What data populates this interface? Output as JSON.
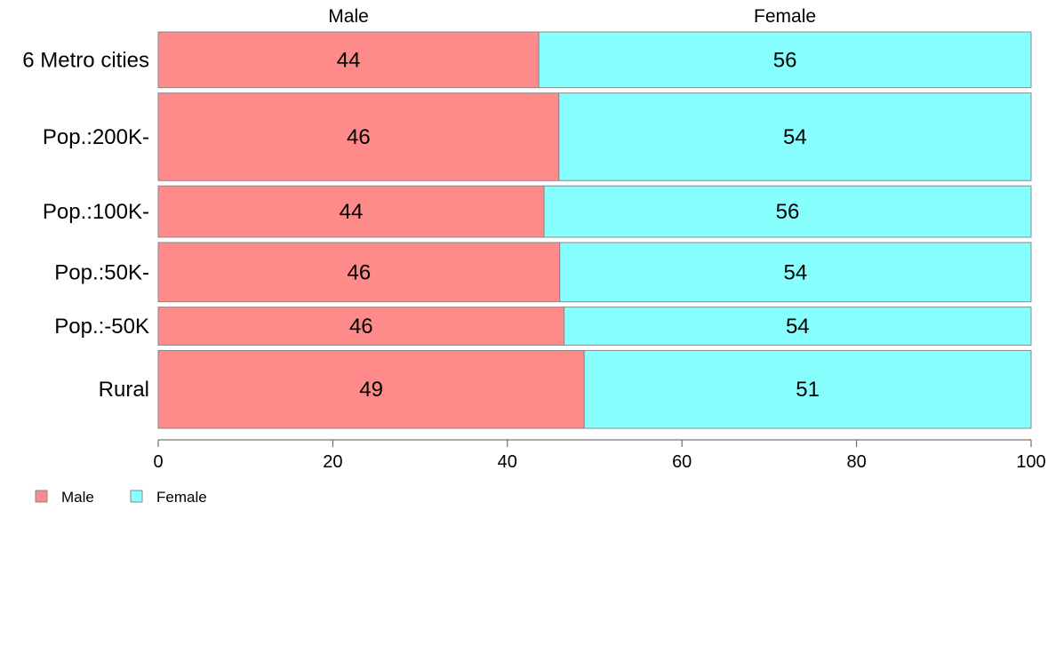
{
  "chart_data": {
    "type": "bar",
    "orientation": "horizontal",
    "stacked": true,
    "categories": [
      "6 Metro cities",
      "Pop.:200K-",
      "Pop.:100K-",
      "Pop.:50K-",
      "Pop.:-50K",
      "Rural"
    ],
    "category_weights": [
      63,
      99,
      58,
      67,
      43,
      88
    ],
    "series": [
      {
        "name": "Male",
        "values": [
          43.6,
          45.9,
          44.2,
          46.0,
          46.5,
          48.8
        ],
        "labels": [
          "44",
          "46",
          "44",
          "46",
          "46",
          "49"
        ],
        "color": "#FF8A8A"
      },
      {
        "name": "Female",
        "values": [
          56.4,
          54.1,
          55.8,
          54.0,
          53.5,
          51.2
        ],
        "labels": [
          "56",
          "54",
          "56",
          "54",
          "54",
          "51"
        ],
        "color": "#88FFFF"
      }
    ],
    "xlim": [
      0,
      100
    ],
    "xticks": [
      "0",
      "20",
      "40",
      "60",
      "80",
      "100"
    ],
    "title": "",
    "xlabel": "",
    "ylabel": "",
    "column_headers": [
      "Male",
      "Female"
    ],
    "legend": {
      "position": "bottom-left",
      "items": [
        {
          "label": "Male",
          "color": "#FF8A8A"
        },
        {
          "label": "Female",
          "color": "#88FFFF"
        }
      ]
    },
    "grid": false
  }
}
